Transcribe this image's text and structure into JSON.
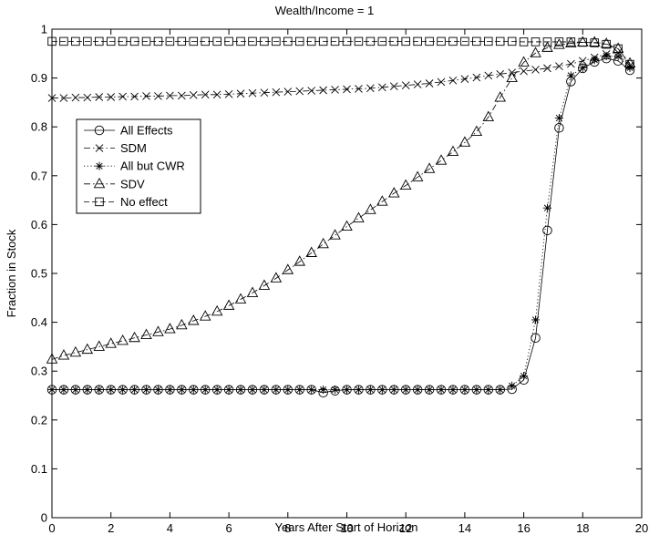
{
  "chart_data": {
    "type": "line",
    "title": "Wealth/Income = 1",
    "xlabel": "Years After Start of Horizon",
    "ylabel": "Fraction in Stock",
    "xlim": [
      0,
      20
    ],
    "ylim": [
      0,
      1
    ],
    "xticks": [
      0,
      2,
      4,
      6,
      8,
      10,
      12,
      14,
      16,
      18,
      20
    ],
    "yticks": [
      0,
      0.1,
      0.2,
      0.3,
      0.4,
      0.5,
      0.6,
      0.7,
      0.8,
      0.9,
      1
    ],
    "xtick_labels": [
      "0",
      "2",
      "4",
      "6",
      "8",
      "10",
      "12",
      "14",
      "16",
      "18",
      "20"
    ],
    "ytick_labels": [
      "0",
      "0.1",
      "0.2",
      "0.3",
      "0.4",
      "0.5",
      "0.6",
      "0.7",
      "0.8",
      "0.9",
      "1"
    ],
    "grid": false,
    "legend_position": "middle-left",
    "x": [
      0,
      0.4,
      0.8,
      1.2,
      1.6,
      2.0,
      2.4,
      2.8,
      3.2,
      3.6,
      4.0,
      4.4,
      4.8,
      5.2,
      5.6,
      6.0,
      6.4,
      6.8,
      7.2,
      7.6,
      8.0,
      8.4,
      8.8,
      9.2,
      9.6,
      10.0,
      10.4,
      10.8,
      11.2,
      11.6,
      12.0,
      12.4,
      12.8,
      13.2,
      13.6,
      14.0,
      14.4,
      14.8,
      15.2,
      15.6,
      16.0,
      16.4,
      16.8,
      17.2,
      17.6,
      18.0,
      18.4,
      18.8,
      19.2,
      19.6
    ],
    "series": [
      {
        "name": "All Effects",
        "marker": "circle",
        "linestyle": "solid",
        "values": [
          0.262,
          0.262,
          0.262,
          0.262,
          0.262,
          0.262,
          0.262,
          0.262,
          0.262,
          0.262,
          0.262,
          0.262,
          0.262,
          0.262,
          0.262,
          0.262,
          0.262,
          0.262,
          0.262,
          0.262,
          0.262,
          0.262,
          0.262,
          0.256,
          0.26,
          0.262,
          0.262,
          0.262,
          0.262,
          0.262,
          0.262,
          0.262,
          0.262,
          0.262,
          0.262,
          0.262,
          0.262,
          0.262,
          0.262,
          0.263,
          0.282,
          0.368,
          0.588,
          0.798,
          0.893,
          0.92,
          0.933,
          0.94,
          0.935,
          0.916
        ]
      },
      {
        "name": "SDM",
        "marker": "x",
        "linestyle": "dashdot",
        "values": [
          0.859,
          0.859,
          0.86,
          0.86,
          0.861,
          0.861,
          0.862,
          0.862,
          0.863,
          0.863,
          0.864,
          0.864,
          0.865,
          0.866,
          0.866,
          0.867,
          0.868,
          0.869,
          0.87,
          0.871,
          0.872,
          0.873,
          0.874,
          0.875,
          0.876,
          0.877,
          0.878,
          0.879,
          0.881,
          0.883,
          0.885,
          0.887,
          0.889,
          0.892,
          0.895,
          0.898,
          0.901,
          0.905,
          0.908,
          0.911,
          0.914,
          0.917,
          0.92,
          0.924,
          0.929,
          0.935,
          0.942,
          0.949,
          0.952,
          0.925
        ]
      },
      {
        "name": "All but CWR",
        "marker": "asterisk",
        "linestyle": "dotted",
        "values": [
          0.262,
          0.262,
          0.262,
          0.262,
          0.262,
          0.262,
          0.262,
          0.262,
          0.262,
          0.262,
          0.262,
          0.262,
          0.262,
          0.262,
          0.262,
          0.262,
          0.262,
          0.262,
          0.262,
          0.262,
          0.262,
          0.262,
          0.262,
          0.262,
          0.262,
          0.262,
          0.262,
          0.262,
          0.262,
          0.262,
          0.262,
          0.262,
          0.262,
          0.262,
          0.262,
          0.262,
          0.262,
          0.262,
          0.262,
          0.27,
          0.29,
          0.405,
          0.634,
          0.818,
          0.905,
          0.921,
          0.937,
          0.945,
          0.944,
          0.921
        ]
      },
      {
        "name": "SDV",
        "marker": "triangle",
        "linestyle": "dashdot",
        "values": [
          0.324,
          0.332,
          0.338,
          0.344,
          0.35,
          0.356,
          0.362,
          0.368,
          0.374,
          0.38,
          0.386,
          0.394,
          0.403,
          0.412,
          0.422,
          0.434,
          0.447,
          0.46,
          0.475,
          0.49,
          0.507,
          0.524,
          0.542,
          0.56,
          0.578,
          0.596,
          0.613,
          0.63,
          0.647,
          0.664,
          0.68,
          0.697,
          0.714,
          0.731,
          0.749,
          0.768,
          0.79,
          0.82,
          0.86,
          0.9,
          0.932,
          0.951,
          0.962,
          0.968,
          0.971,
          0.973,
          0.973,
          0.97,
          0.96,
          0.93
        ]
      },
      {
        "name": "No effect",
        "marker": "square",
        "linestyle": "dashed",
        "values": [
          0.975,
          0.975,
          0.975,
          0.975,
          0.975,
          0.975,
          0.975,
          0.975,
          0.975,
          0.975,
          0.975,
          0.975,
          0.975,
          0.975,
          0.975,
          0.975,
          0.975,
          0.975,
          0.975,
          0.975,
          0.975,
          0.975,
          0.975,
          0.975,
          0.975,
          0.975,
          0.975,
          0.975,
          0.975,
          0.975,
          0.975,
          0.975,
          0.975,
          0.975,
          0.975,
          0.975,
          0.975,
          0.975,
          0.975,
          0.975,
          0.974,
          0.974,
          0.974,
          0.974,
          0.974,
          0.973,
          0.972,
          0.969,
          0.96,
          0.928
        ]
      }
    ]
  }
}
